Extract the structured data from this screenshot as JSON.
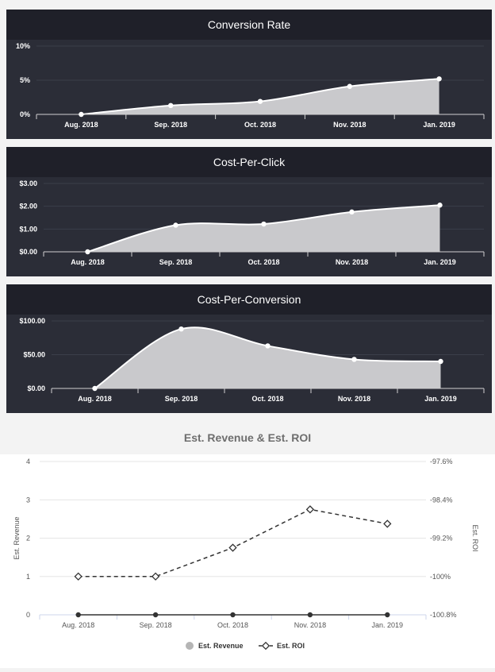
{
  "chart_data": [
    {
      "type": "area",
      "title": "Conversion Rate",
      "categories": [
        "Aug. 2018",
        "Sep. 2018",
        "Oct. 2018",
        "Nov. 2018",
        "Jan. 2019"
      ],
      "values": [
        0,
        1.3,
        1.9,
        4.1,
        5.2
      ],
      "yticks": [
        0,
        5,
        10
      ],
      "ytick_labels": [
        "0%",
        "5%",
        "10%"
      ],
      "ylim": [
        0,
        10
      ]
    },
    {
      "type": "area",
      "title": "Cost-Per-Click",
      "categories": [
        "Aug. 2018",
        "Sep. 2018",
        "Oct. 2018",
        "Nov. 2018",
        "Jan. 2019"
      ],
      "values": [
        0,
        1.17,
        1.22,
        1.75,
        2.05
      ],
      "yticks": [
        0,
        1,
        2,
        3
      ],
      "ytick_labels": [
        "$0.00",
        "$1.00",
        "$2.00",
        "$3.00"
      ],
      "ylim": [
        0,
        3
      ]
    },
    {
      "type": "area",
      "title": "Cost-Per-Conversion",
      "categories": [
        "Aug. 2018",
        "Sep. 2018",
        "Oct. 2018",
        "Nov. 2018",
        "Jan. 2019"
      ],
      "values": [
        0,
        88,
        63,
        43,
        40
      ],
      "yticks": [
        0,
        50,
        100
      ],
      "ytick_labels": [
        "$0.00",
        "$50.00",
        "$100.00"
      ],
      "ylim": [
        0,
        100
      ]
    },
    {
      "type": "line",
      "title": "Est. Revenue & Est. ROI",
      "categories": [
        "Aug. 2018",
        "Sep. 2018",
        "Oct. 2018",
        "Nov. 2018",
        "Jan. 2019"
      ],
      "ylabel": "Est. Revenue",
      "y2label": "Est. ROI",
      "ylim": [
        0,
        4
      ],
      "yticks": [
        0,
        1,
        2,
        3,
        4
      ],
      "ytick_labels": [
        "0",
        "1",
        "2",
        "3",
        "4"
      ],
      "y2lim": [
        -100.8,
        -97.6
      ],
      "y2ticks": [
        -100.8,
        -100,
        -99.2,
        -98.4,
        -97.6
      ],
      "y2tick_labels": [
        "-100.8%",
        "-100%",
        "-99.2%",
        "-98.4%",
        "-97.6%"
      ],
      "series": [
        {
          "name": "Est. Revenue",
          "axis": "left",
          "values": [
            0,
            0,
            0,
            0,
            0
          ],
          "color": "#333333"
        },
        {
          "name": "Est. ROI",
          "axis": "right",
          "values": [
            -100,
            -100,
            -99.4,
            -98.6,
            -98.9
          ],
          "color": "#333333"
        }
      ]
    }
  ],
  "colors": {
    "panel_bg": "#2b2d37",
    "title_bg": "#1f2029",
    "area_fill": "#c9c9cc",
    "line": "#ffffff"
  }
}
